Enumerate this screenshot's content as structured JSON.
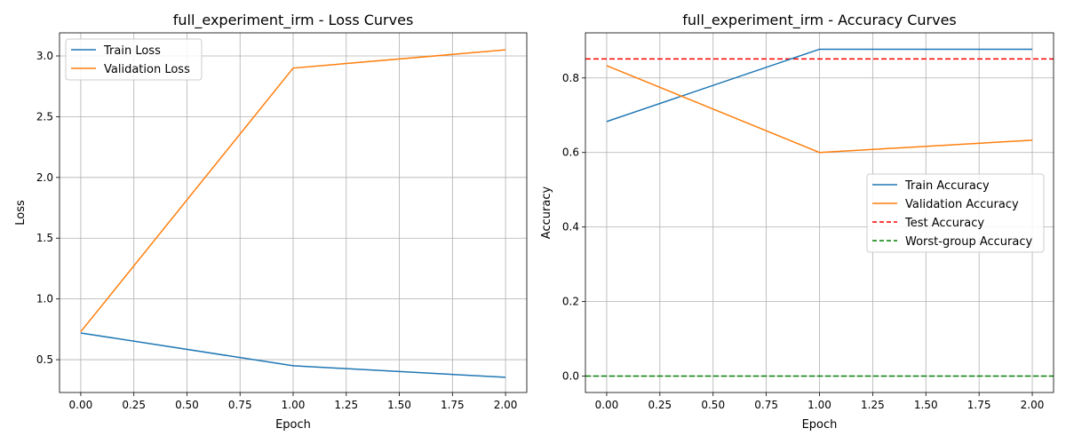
{
  "chart_data": [
    {
      "type": "line",
      "title": "full_experiment_irm - Loss Curves",
      "xlabel": "Epoch",
      "ylabel": "Loss",
      "xlim": [
        -0.1,
        2.1
      ],
      "ylim": [
        0.23,
        3.19
      ],
      "xticks": [
        0.0,
        0.25,
        0.5,
        0.75,
        1.0,
        1.25,
        1.5,
        1.75,
        2.0
      ],
      "xtick_labels": [
        "0.00",
        "0.25",
        "0.50",
        "0.75",
        "1.00",
        "1.25",
        "1.50",
        "1.75",
        "2.00"
      ],
      "yticks": [
        0.5,
        1.0,
        1.5,
        2.0,
        2.5,
        3.0
      ],
      "ytick_labels": [
        "0.5",
        "1.0",
        "1.5",
        "2.0",
        "2.5",
        "3.0"
      ],
      "grid": true,
      "legend_position": "upper left",
      "x": [
        0,
        1,
        2
      ],
      "series": [
        {
          "name": "Train Loss",
          "values": [
            0.72,
            0.45,
            0.355
          ],
          "color": "#1f77b4",
          "style": "solid"
        },
        {
          "name": "Validation Loss",
          "values": [
            0.73,
            2.9,
            3.05
          ],
          "color": "#ff7f0e",
          "style": "solid"
        }
      ]
    },
    {
      "type": "line",
      "title": "full_experiment_irm - Accuracy Curves",
      "xlabel": "Epoch",
      "ylabel": "Accuracy",
      "xlim": [
        -0.1,
        2.1
      ],
      "ylim": [
        -0.044,
        0.921
      ],
      "xticks": [
        0.0,
        0.25,
        0.5,
        0.75,
        1.0,
        1.25,
        1.5,
        1.75,
        2.0
      ],
      "xtick_labels": [
        "0.00",
        "0.25",
        "0.50",
        "0.75",
        "1.00",
        "1.25",
        "1.50",
        "1.75",
        "2.00"
      ],
      "yticks": [
        0.0,
        0.2,
        0.4,
        0.6,
        0.8
      ],
      "ytick_labels": [
        "0.0",
        "0.2",
        "0.4",
        "0.6",
        "0.8"
      ],
      "grid": true,
      "legend_position": "center right",
      "x": [
        0,
        1,
        2
      ],
      "series": [
        {
          "name": "Train Accuracy",
          "values": [
            0.683,
            0.877,
            0.877
          ],
          "color": "#1f77b4",
          "style": "solid"
        },
        {
          "name": "Validation Accuracy",
          "values": [
            0.833,
            0.6,
            0.633
          ],
          "color": "#ff7f0e",
          "style": "solid"
        }
      ],
      "hlines": [
        {
          "name": "Test Accuracy",
          "value": 0.851,
          "color": "#ff0000",
          "style": "dashed"
        },
        {
          "name": "Worst-group Accuracy",
          "value": 0.0,
          "color": "#008000",
          "style": "dashed"
        }
      ]
    }
  ]
}
